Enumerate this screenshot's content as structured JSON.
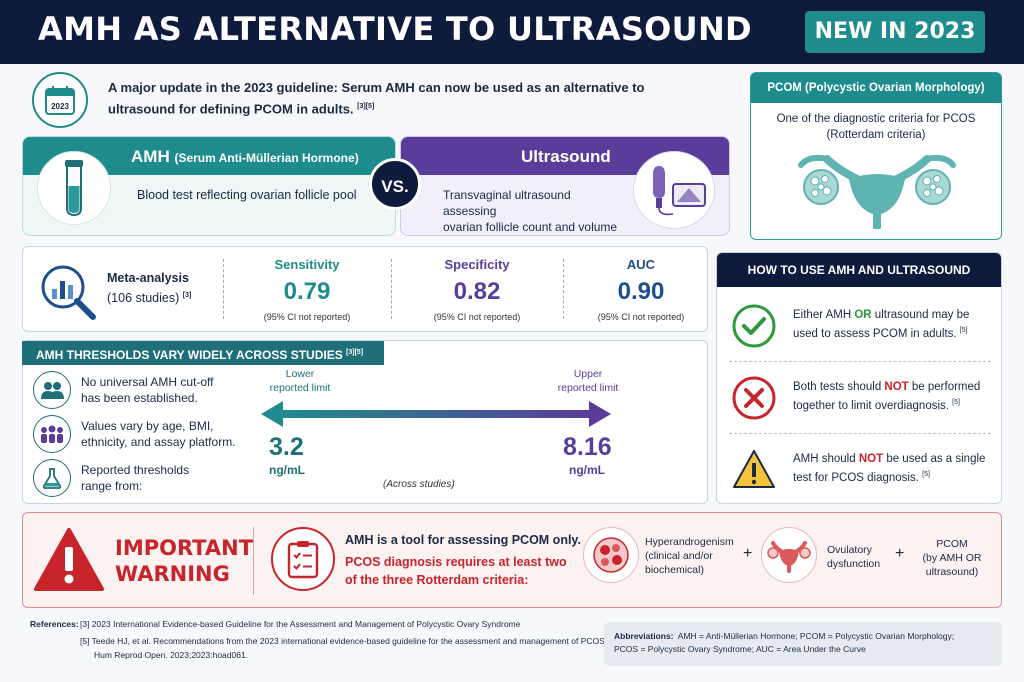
{
  "header": {
    "title": "AMH AS ALTERNATIVE TO ULTRASOUND",
    "badge": "NEW IN 2023"
  },
  "intro": {
    "icon_text": "2023",
    "text": "A major update in the 2023 guideline: Serum AMH can now be used as an alternative to ultrasound for defining PCOM in adults.",
    "refs": "[3][5]"
  },
  "pcom": {
    "title": "PCOM (Polycystic Ovarian Morphology)",
    "line1": "One of the diagnostic criteria for PCOS",
    "line2": "(Rotterdam criteria)",
    "icon": "ovaries-uterus-icon"
  },
  "amh_card": {
    "title": "AMH",
    "subtitle": "(Serum Anti-Müllerian Hormone)",
    "desc": "Blood test reflecting ovarian follicle pool",
    "icon": "test-tube-icon"
  },
  "vs": "VS.",
  "us_card": {
    "title": "Ultrasound",
    "desc_line1": "Transvaginal ultrasound assessing",
    "desc_line2": "ovarian follicle count and volume",
    "icon": "ultrasound-probe-icon"
  },
  "meta": {
    "title": "Meta-analysis",
    "studies": "(106 studies)",
    "ref": "[3]",
    "stats": [
      {
        "label": "Sensitivity",
        "value": "0.79",
        "ci": "(95% CI not reported)",
        "color": "#1e8c8c"
      },
      {
        "label": "Specificity",
        "value": "0.82",
        "ci": "(95% CI not reported)",
        "color": "#5a3d9a"
      },
      {
        "label": "AUC",
        "value": "0.90",
        "ci": "(95% CI not reported)",
        "color": "#1f4e8c"
      }
    ]
  },
  "thresholds": {
    "title": "AMH THRESHOLDS VARY WIDELY ACROSS STUDIES",
    "ref": "[3][5]",
    "items": [
      {
        "line1": "No universal AMH cut-off",
        "line2": "has been established.",
        "icon": "people-icon"
      },
      {
        "line1": "Values vary by age, BMI,",
        "line2": "ethnicity, and assay platform.",
        "icon": "group-icon"
      },
      {
        "line1": "Reported thresholds",
        "line2": "range from:",
        "icon": "flask-icon"
      }
    ],
    "lower_label1": "Lower",
    "lower_label2": "reported limit",
    "lower_value": "3.2",
    "upper_label1": "Upper",
    "upper_label2": "reported limit",
    "upper_value": "8.16",
    "unit": "ng/mL",
    "note": "(Across studies)"
  },
  "how": {
    "title": "HOW TO USE AMH AND ULTRASOUND",
    "items": [
      {
        "pre": "Either AMH ",
        "hl": "OR",
        "post": " ultrasound may be used to assess PCOM in adults.",
        "ref": "[5]",
        "icon": "check-icon"
      },
      {
        "pre": "Both tests should ",
        "hl": "NOT",
        "post": " be performed together to limit overdiagnosis.",
        "ref": "[5]",
        "icon": "cross-icon"
      },
      {
        "pre": "AMH should ",
        "hl": "NOT",
        "post": " be used as a single test for PCOS diagnosis.",
        "ref": "[5]",
        "icon": "warning-icon"
      }
    ]
  },
  "warning": {
    "title1": "IMPORTANT",
    "title2": "WARNING",
    "line1": "AMH is a tool for assessing PCOM only.",
    "line2": "PCOS diagnosis requires at least two of the three Rotterdam criteria:",
    "criteria": [
      {
        "text1": "Hyperandrogenism",
        "text2": "(clinical and/or",
        "text3": "biochemical)",
        "icon": "cells-icon"
      },
      {
        "text1": "Ovulatory",
        "text2": "dysfunction",
        "icon": "uterus-icon"
      },
      {
        "text1": "PCOM",
        "text2": "(by AMH OR",
        "text3": "ultrasound)"
      }
    ],
    "plus": "+"
  },
  "references": {
    "label": "References:",
    "ref3": "[3]  2023 International Evidence-based Guideline for the Assessment and Management of Polycystic Ovary Syndrome",
    "ref5a": "[5]  Teede HJ, et al. Recommendations from the 2023 international evidence-based guideline for the assessment and management of PCOS.",
    "ref5b": "Hum Reprod Open. 2023;2023:hoad061."
  },
  "abbreviations": {
    "label": "Abbreviations:",
    "line1": "AMH = Anti-Müllerian Hormone; PCOM = Polycystic Ovarian Morphology;",
    "line2": "PCOS = Polycystic Ovary Syndrome; AUC = Area Under the Curve"
  }
}
